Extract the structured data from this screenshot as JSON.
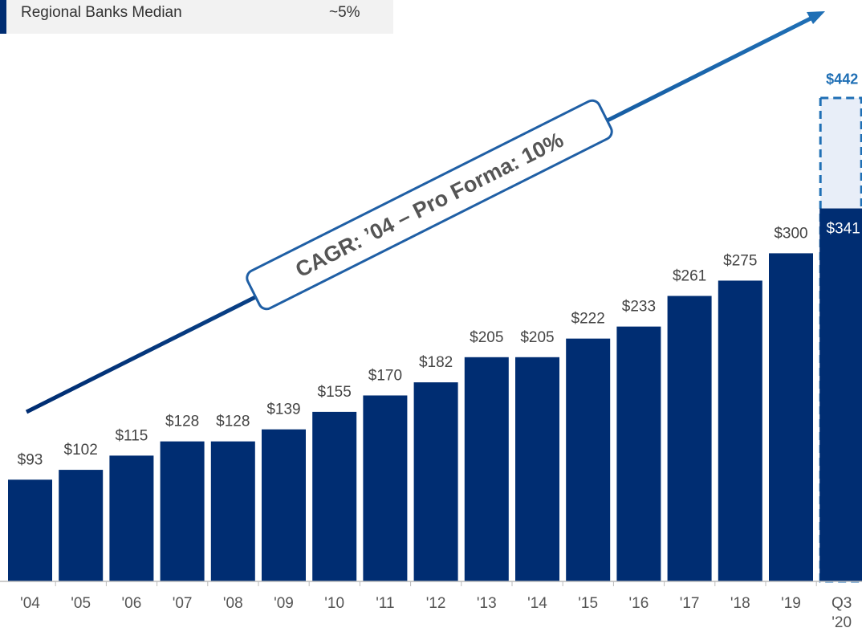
{
  "chart_data": {
    "type": "bar",
    "categories": [
      "'04",
      "'05",
      "'06",
      "'07",
      "'08",
      "'09",
      "'10",
      "'11",
      "'12",
      "'13",
      "'14",
      "'15",
      "'16",
      "'17",
      "'18",
      "'19",
      "Q3 '20"
    ],
    "values": [
      93,
      102,
      115,
      128,
      128,
      139,
      155,
      170,
      182,
      205,
      205,
      222,
      233,
      261,
      275,
      300,
      341
    ],
    "value_labels": [
      "$93",
      "$102",
      "$115",
      "$128",
      "$128",
      "$139",
      "$155",
      "$170",
      "$182",
      "$205",
      "$205",
      "$222",
      "$233",
      "$261",
      "$275",
      "$300",
      "$341"
    ],
    "color": "#002d72",
    "pro_forma": {
      "value": 442,
      "label": "$442",
      "color": "#1f6fb5"
    },
    "benchmark": {
      "name": "Regional Banks Median",
      "label": "~5%"
    },
    "annotation": "CAGR: ’04 – Pro Forma: 10%"
  }
}
